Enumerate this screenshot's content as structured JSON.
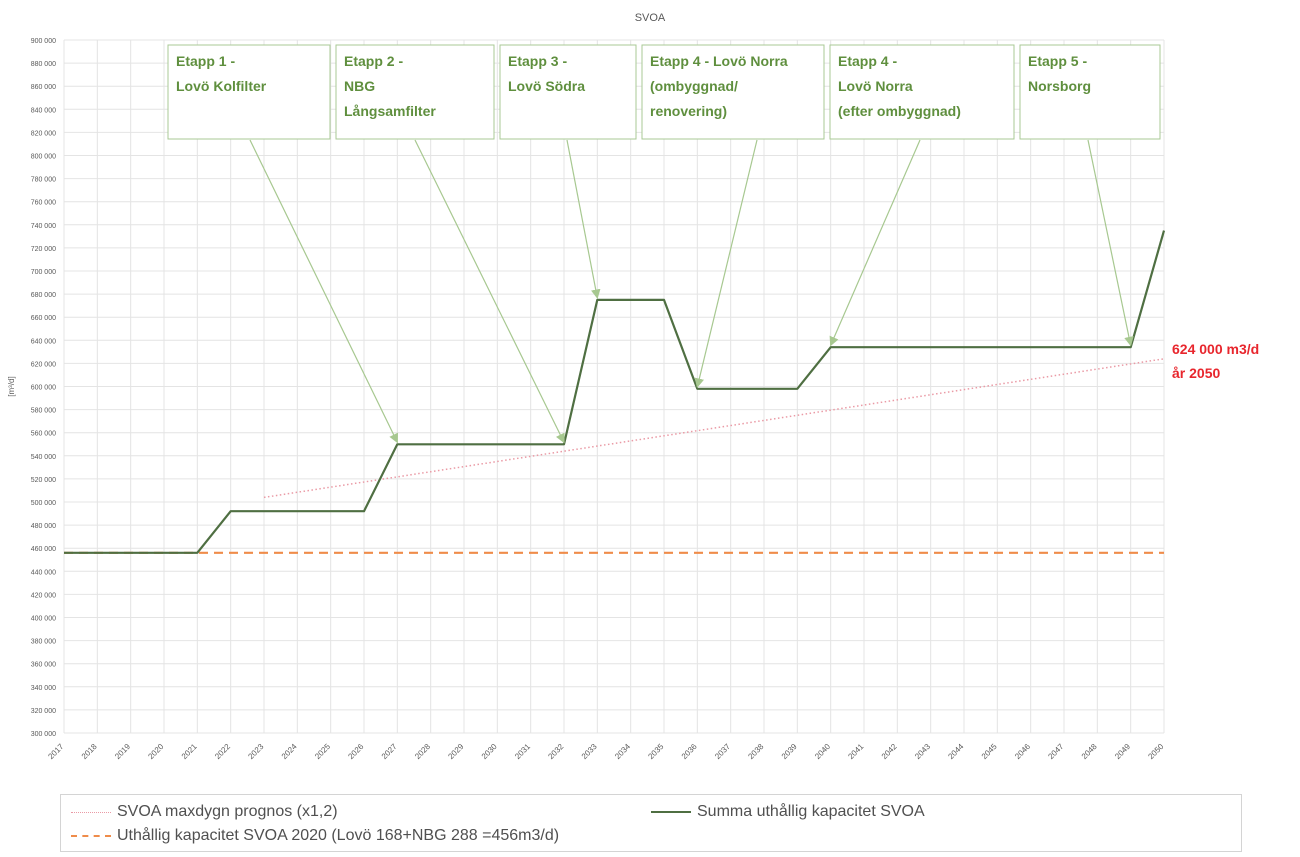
{
  "chart_data": {
    "type": "line",
    "title": "SVOA",
    "xlabel": "",
    "ylabel": "[m³/d]",
    "x": [
      2017,
      2018,
      2019,
      2020,
      2021,
      2022,
      2023,
      2024,
      2025,
      2026,
      2027,
      2028,
      2029,
      2030,
      2031,
      2032,
      2033,
      2034,
      2035,
      2036,
      2037,
      2038,
      2039,
      2040,
      2041,
      2042,
      2043,
      2044,
      2045,
      2046,
      2047,
      2048,
      2049,
      2050
    ],
    "x_tick_labels": [
      "2017",
      "2018",
      "2019",
      "2020",
      "2021",
      "2022",
      "2023",
      "2024",
      "2025",
      "2026",
      "2027",
      "2028",
      "2029",
      "2030",
      "2031",
      "2032",
      "2033",
      "2034",
      "2035",
      "2036",
      "2037",
      "2038",
      "2039",
      "2040",
      "2041",
      "2042",
      "2043",
      "2044",
      "2045",
      "2046",
      "2047",
      "2048",
      "2049",
      "2050"
    ],
    "ylim": [
      300000,
      900000
    ],
    "y_tick_labels": [
      "300 000",
      "320 000",
      "340 000",
      "360 000",
      "380 000",
      "400 000",
      "420 000",
      "440 000",
      "460 000",
      "480 000",
      "500 000",
      "520 000",
      "540 000",
      "560 000",
      "580 000",
      "600 000",
      "620 000",
      "640 000",
      "660 000",
      "680 000",
      "700 000",
      "720 000",
      "740 000",
      "760 000",
      "780 000",
      "800 000",
      "820 000",
      "840 000",
      "860 000",
      "880 000",
      "900 000"
    ],
    "grid": true,
    "legend_position": "bottom",
    "series": [
      {
        "name": "SVOA maxdygn prognos (x1,2)",
        "style": "dotted",
        "color": "#ea9aa5",
        "points": [
          [
            2023,
            504000
          ],
          [
            2050,
            624000
          ]
        ]
      },
      {
        "name": "Summa uthållig kapacitet SVOA",
        "style": "solid",
        "color": "#4f6f42",
        "points": [
          [
            2017,
            456000
          ],
          [
            2021,
            456000
          ],
          [
            2022,
            492000
          ],
          [
            2026,
            492000
          ],
          [
            2027,
            550000
          ],
          [
            2032,
            550000
          ],
          [
            2033,
            675000
          ],
          [
            2035,
            675000
          ],
          [
            2036,
            598000
          ],
          [
            2039,
            598000
          ],
          [
            2040,
            634000
          ],
          [
            2049,
            634000
          ],
          [
            2050,
            735000
          ]
        ]
      },
      {
        "name": "Uthållig kapacitet SVOA 2020 (Lovö 168+NBG 288 =456m3/d)",
        "style": "dashed",
        "color": "#ef8c4a",
        "points": [
          [
            2017,
            456000
          ],
          [
            2050,
            456000
          ]
        ]
      }
    ],
    "annotations": [
      {
        "lines": [
          "Etapp 1 -",
          "Lovö Kolfilter"
        ],
        "target": [
          2027,
          550000
        ]
      },
      {
        "lines": [
          "Etapp 2 -",
          "NBG",
          "Långsamfilter"
        ],
        "target": [
          2032,
          550000
        ]
      },
      {
        "lines": [
          "Etapp 3 -",
          "Lovö Södra"
        ],
        "target": [
          2033,
          675000
        ]
      },
      {
        "lines": [
          "Etapp 4 - Lovö Norra",
          "(ombyggnad/",
          "renovering)"
        ],
        "target": [
          2036,
          598000
        ]
      },
      {
        "lines": [
          "Etapp 4 -",
          "Lovö Norra",
          "(efter ombyggnad)"
        ],
        "target": [
          2040,
          634000
        ]
      },
      {
        "lines": [
          "Etapp 5 -",
          "Norsborg"
        ],
        "target": [
          2049,
          634000
        ]
      }
    ],
    "callout": {
      "lines": [
        "624 000 m3/d",
        "år 2050"
      ],
      "color": "#e8262d"
    }
  }
}
